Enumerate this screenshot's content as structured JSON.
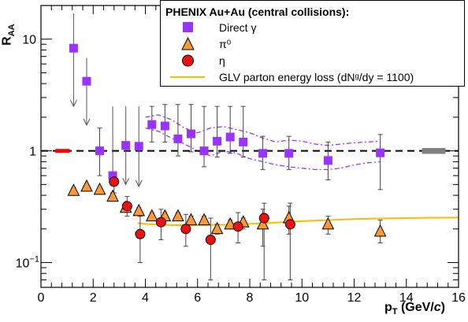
{
  "legend": {
    "title": "PHENIX Au+Au (central collisions):",
    "entries": [
      {
        "label": "Direct γ",
        "marker": "square",
        "color": "#9933ff"
      },
      {
        "label": "π⁰",
        "marker": "triangle",
        "color": "#ff9933"
      },
      {
        "label": "η",
        "marker": "circle",
        "color": "#ee1111"
      },
      {
        "label": "GLV parton energy loss (dNᵍ/dy = 1100)",
        "marker": "line",
        "color": "#ffbb00"
      }
    ]
  },
  "chart_data": {
    "type": "scatter",
    "xlabel": "p_T (GeV/c)",
    "xlabel_display": "p",
    "xlabel_sub": "T",
    "xlabel_rest": " (GeV/",
    "xlabel_italic": "c",
    "xlabel_close": ")",
    "ylabel": "R_AA",
    "ylabel_display": "R",
    "ylabel_sub": "AA",
    "xlim": [
      0,
      16
    ],
    "ylim": [
      0.06,
      20
    ],
    "yscale": "log",
    "x_ticks": [
      "0",
      "2",
      "4",
      "6",
      "8",
      "10",
      "12",
      "14",
      "16"
    ],
    "y_ticks": [
      {
        "value": 0.1,
        "label": "10",
        "sup": "−1"
      },
      {
        "value": 1,
        "label": "1",
        "sup": ""
      },
      {
        "value": 10,
        "label": "10",
        "sup": ""
      }
    ],
    "reference_line": {
      "y": 1,
      "style": "dashed",
      "color": "#000000"
    },
    "normalization_boxes": [
      {
        "x": [
          0.55,
          1.1
        ],
        "y": [
          0.96,
          1.04
        ],
        "color": "#ff0000"
      },
      {
        "x": [
          14.6,
          15.5
        ],
        "y": [
          0.94,
          1.06
        ],
        "color": "#808080"
      }
    ],
    "series": [
      {
        "name": "Direct γ",
        "marker": "square",
        "color": "#9933ff",
        "points": [
          {
            "x": 1.25,
            "y": 8.3,
            "lo": 2.5,
            "hi": 17,
            "limit": true
          },
          {
            "x": 1.75,
            "y": 4.2,
            "lo": 1.7,
            "hi": 6.8,
            "limit": true
          },
          {
            "x": 2.25,
            "y": 1.0,
            "lo": 0.6,
            "hi": 1.6
          },
          {
            "x": 2.75,
            "y": 0.6,
            "lo": 0.5,
            "hi": 2.5,
            "limit": true
          },
          {
            "x": 3.25,
            "y": 1.12,
            "lo": 0.5,
            "hi": 2.5,
            "limit": true
          },
          {
            "x": 3.75,
            "y": 1.1,
            "lo": 0.48,
            "hi": 2.5,
            "limit": true
          },
          {
            "x": 4.25,
            "y": 1.72,
            "lo": 1.2,
            "hi": 2.5
          },
          {
            "x": 4.75,
            "y": 1.67,
            "lo": 1.2,
            "hi": 2.6
          },
          {
            "x": 5.25,
            "y": 1.28,
            "lo": 0.9,
            "hi": 2.6
          },
          {
            "x": 5.75,
            "y": 1.42,
            "lo": 0.98,
            "hi": 2.6
          },
          {
            "x": 6.25,
            "y": 1.0,
            "lo": 0.72,
            "hi": 2.5
          },
          {
            "x": 6.75,
            "y": 1.22,
            "lo": 0.88,
            "hi": 2.5
          },
          {
            "x": 7.25,
            "y": 1.33,
            "lo": 0.95,
            "hi": 2.5
          },
          {
            "x": 7.75,
            "y": 1.2,
            "lo": 0.88,
            "hi": 2.5
          },
          {
            "x": 8.5,
            "y": 0.95,
            "lo": 0.68,
            "hi": 1.35
          },
          {
            "x": 9.5,
            "y": 0.95,
            "lo": 0.68,
            "hi": 1.35
          },
          {
            "x": 11.0,
            "y": 0.82,
            "lo": 0.55,
            "hi": 1.2
          },
          {
            "x": 13.0,
            "y": 0.96,
            "lo": 0.45,
            "hi": 1.4
          }
        ]
      },
      {
        "name": "π⁰",
        "marker": "triangle",
        "color": "#ff9933",
        "points": [
          {
            "x": 1.25,
            "y": 0.44,
            "lo": 0.42,
            "hi": 0.47
          },
          {
            "x": 1.75,
            "y": 0.48,
            "lo": 0.46,
            "hi": 0.5
          },
          {
            "x": 2.25,
            "y": 0.45,
            "lo": 0.43,
            "hi": 0.47
          },
          {
            "x": 2.75,
            "y": 0.39,
            "lo": 0.36,
            "hi": 0.42
          },
          {
            "x": 3.25,
            "y": 0.31,
            "lo": 0.29,
            "hi": 0.33
          },
          {
            "x": 3.75,
            "y": 0.29,
            "lo": 0.27,
            "hi": 0.31
          },
          {
            "x": 4.25,
            "y": 0.26,
            "lo": 0.24,
            "hi": 0.28
          },
          {
            "x": 4.75,
            "y": 0.26,
            "lo": 0.24,
            "hi": 0.28
          },
          {
            "x": 5.25,
            "y": 0.26,
            "lo": 0.24,
            "hi": 0.28
          },
          {
            "x": 5.75,
            "y": 0.24,
            "lo": 0.22,
            "hi": 0.26
          },
          {
            "x": 6.25,
            "y": 0.24,
            "lo": 0.22,
            "hi": 0.26
          },
          {
            "x": 6.75,
            "y": 0.2,
            "lo": 0.18,
            "hi": 0.22
          },
          {
            "x": 7.25,
            "y": 0.22,
            "lo": 0.2,
            "hi": 0.24
          },
          {
            "x": 7.75,
            "y": 0.23,
            "lo": 0.2,
            "hi": 0.25
          },
          {
            "x": 8.5,
            "y": 0.22,
            "lo": 0.14,
            "hi": 0.3
          },
          {
            "x": 9.5,
            "y": 0.25,
            "lo": 0.18,
            "hi": 0.32
          },
          {
            "x": 11.0,
            "y": 0.22,
            "lo": 0.18,
            "hi": 0.26
          },
          {
            "x": 13.0,
            "y": 0.19,
            "lo": 0.15,
            "hi": 0.24
          }
        ]
      },
      {
        "name": "η",
        "marker": "circle",
        "color": "#ee1111",
        "points": [
          {
            "x": 2.8,
            "y": 0.53,
            "lo": 0.42,
            "hi": 0.64
          },
          {
            "x": 3.3,
            "y": 0.32,
            "lo": 0.26,
            "hi": 0.39
          },
          {
            "x": 3.8,
            "y": 0.18,
            "lo": 0.1,
            "hi": 0.26
          },
          {
            "x": 4.6,
            "y": 0.23,
            "lo": 0.16,
            "hi": 0.3
          },
          {
            "x": 5.55,
            "y": 0.2,
            "lo": 0.14,
            "hi": 0.27
          },
          {
            "x": 6.5,
            "y": 0.16,
            "lo": 0.07,
            "hi": 0.25
          },
          {
            "x": 7.55,
            "y": 0.21,
            "lo": 0.15,
            "hi": 0.28
          },
          {
            "x": 8.55,
            "y": 0.25,
            "lo": 0.07,
            "hi": 0.34
          },
          {
            "x": 9.55,
            "y": 0.22,
            "lo": 0.07,
            "hi": 0.34
          }
        ]
      },
      {
        "name": "GLV parton energy loss (dNᵍ/dy = 1100)",
        "marker": "line",
        "color": "#ffbb00",
        "x": [
          3.7,
          4.0,
          4.5,
          5.0,
          6.0,
          7.0,
          8.0,
          9.0,
          10.0,
          11.0,
          12.0,
          13.0,
          14.0,
          15.0,
          16.0
        ],
        "y": [
          0.225,
          0.222,
          0.218,
          0.216,
          0.216,
          0.218,
          0.222,
          0.228,
          0.235,
          0.24,
          0.245,
          0.248,
          0.25,
          0.252,
          0.253
        ]
      }
    ],
    "direct_gamma_systematics_band": {
      "x": [
        4.0,
        4.5,
        5.0,
        5.5,
        6.0,
        6.5,
        7.0,
        7.5,
        8.0,
        8.5,
        9.0,
        9.5,
        10.0,
        10.5,
        11.0,
        11.5,
        12.0,
        12.5,
        13.0
      ],
      "upper": [
        2.0,
        2.1,
        1.9,
        1.6,
        1.45,
        1.6,
        1.65,
        1.55,
        1.45,
        1.3,
        1.2,
        1.25,
        1.22,
        1.15,
        1.12,
        1.15,
        1.18,
        1.2,
        1.22
      ],
      "lower": [
        1.6,
        1.5,
        1.3,
        1.15,
        1.0,
        0.9,
        1.0,
        0.95,
        0.85,
        0.8,
        0.75,
        0.72,
        0.7,
        0.68,
        0.68,
        0.7,
        0.75,
        0.78,
        0.8
      ]
    }
  }
}
